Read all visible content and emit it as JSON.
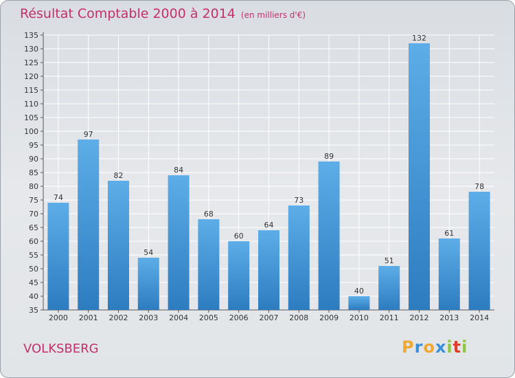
{
  "title": "Résultat Comptable 2000 à 2014",
  "subtitle": "(en milliers d'€)",
  "city": "VOLKSBERG",
  "brand": {
    "letters": [
      "P",
      "r",
      "o",
      "x",
      "i",
      "t",
      "i"
    ],
    "colors": [
      "#f0a830",
      "#3b8fd9",
      "#f0a830",
      "#3b8fd9",
      "#8cc63e",
      "#e23d28",
      "#8cc63e"
    ]
  },
  "colors": {
    "title": "#c2306b",
    "bar_light": "#5dade8",
    "bar_dark": "#2d7cc0"
  },
  "chart_data": {
    "type": "bar",
    "title": "Résultat Comptable 2000 à 2014",
    "xlabel": "",
    "ylabel": "",
    "ylim": [
      35,
      135
    ],
    "ytick_step": 5,
    "grid": true,
    "categories": [
      "2000",
      "2001",
      "2002",
      "2003",
      "2004",
      "2005",
      "2006",
      "2007",
      "2008",
      "2009",
      "2010",
      "2011",
      "2012",
      "2013",
      "2014"
    ],
    "values": [
      74,
      97,
      82,
      54,
      84,
      68,
      60,
      64,
      73,
      89,
      40,
      51,
      132,
      61,
      78
    ]
  }
}
